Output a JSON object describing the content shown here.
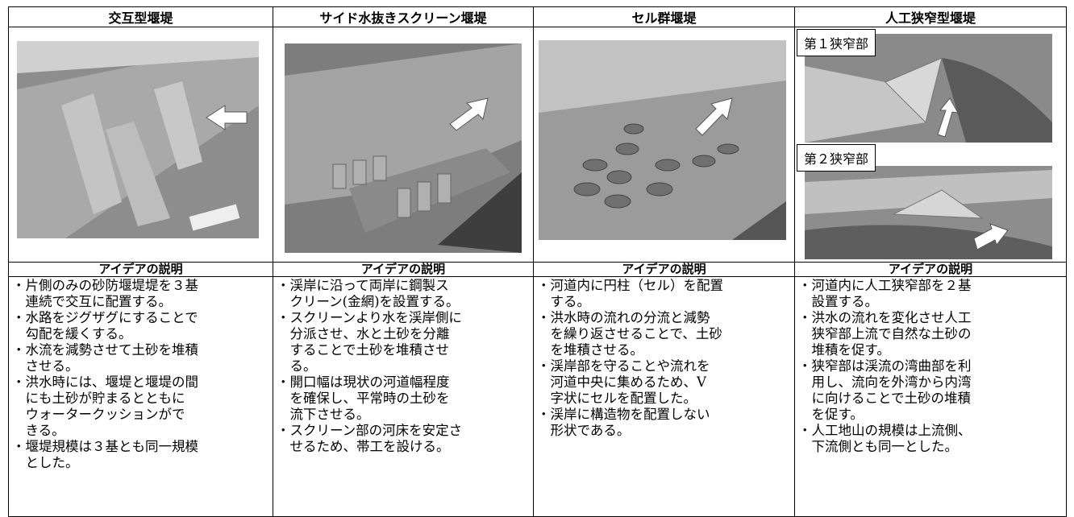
{
  "table": {
    "headers": [
      "交互型堰堤",
      "サイド水抜きスクリーン堰堤",
      "セル群堰堤",
      "人工狭窄型堰堤"
    ],
    "photo_labels": [
      "第１狭窄部",
      "第２狭窄部"
    ],
    "subheaders": [
      "アイデアの説明",
      "アイデアの説明",
      "アイデアの説明",
      "アイデアの説明"
    ],
    "columns": [
      [
        [
          "・片側のみの砂防堰堤堤を３基",
          "連続で交互に配置する。"
        ],
        [
          "・水路をジグザグにすることで",
          "勾配を緩くする。"
        ],
        [
          "・水流を減勢させて土砂を堆積",
          "させる。"
        ],
        [
          "・洪水時には、堰堤と堰堤の間",
          "にも土砂が貯まるとともに",
          "ウォータークッションがで",
          "きる。"
        ],
        [
          "・堰堤規模は３基とも同一規模",
          "とした。"
        ]
      ],
      [
        [
          "・渓岸に沿って両岸に鋼製ス",
          "クリーン(金網)を設置する。"
        ],
        [
          "・スクリーンより水を渓岸側に",
          "分派させ、水と土砂を分離",
          "することで土砂を堆積させ",
          "る。"
        ],
        [
          "・開口幅は現状の河道幅程度",
          "を確保し、平常時の土砂を",
          "流下させる。"
        ],
        [
          "・スクリーン部の河床を安定さ",
          "せるため、帯工を設ける。"
        ]
      ],
      [
        [
          "・河道内に円柱（セル）を配置",
          "する。"
        ],
        [
          "・洪水時の流れの分流と減勢",
          "を繰り返させることで、土砂",
          "を堆積させる。"
        ],
        [
          "・渓岸部を守ることや流れを",
          "河道中央に集めるため、V",
          "字状にセルを配置した。"
        ],
        [
          "・渓岸に構造物を配置しない",
          "形状である。"
        ]
      ],
      [
        [
          "・河道内に人工狭窄部を２基",
          "設置する。"
        ],
        [
          "・洪水の流れを変化させ人工",
          "狭窄部上流で自然な土砂の",
          "堆積を促す。"
        ],
        [
          "・狭窄部は渓流の湾曲部を利",
          "用し、流向を外湾から内湾",
          "に向けることで土砂の堆積",
          "を促す。"
        ],
        [
          "・人工地山の規模は上流側、",
          "下流側とも同一とした。"
        ]
      ]
    ]
  }
}
